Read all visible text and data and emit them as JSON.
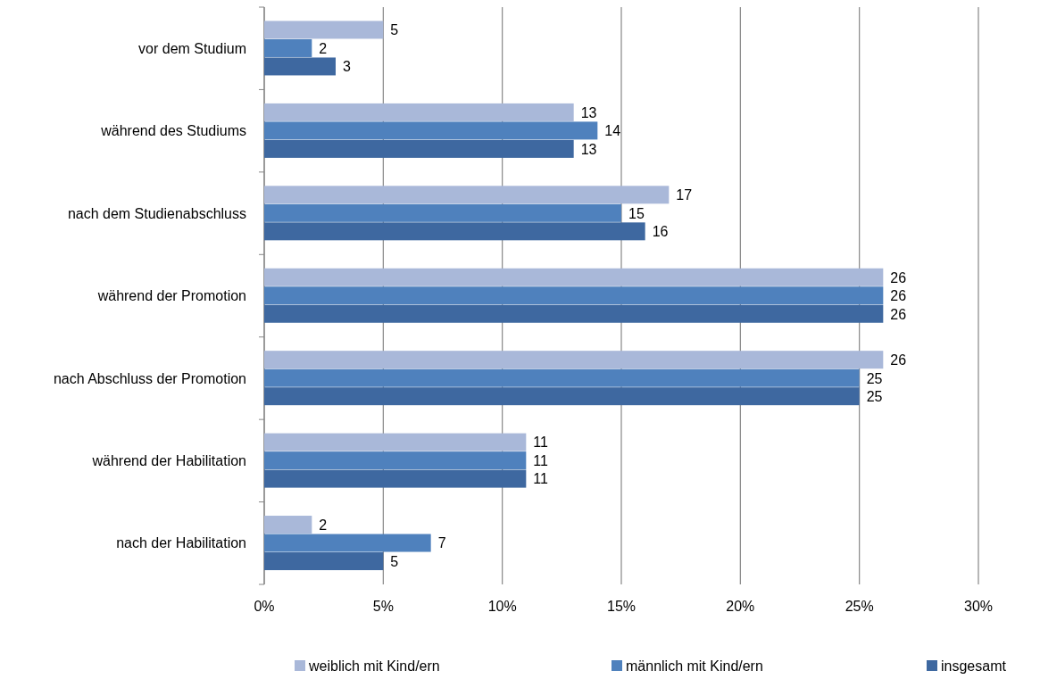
{
  "chart_data": {
    "type": "bar",
    "orientation": "horizontal",
    "categories": [
      "vor dem Studium",
      "während des Studiums",
      "nach dem Studienabschluss",
      "während der Promotion",
      "nach Abschluss der Promotion",
      "während der Habilitation",
      "nach der Habilitation"
    ],
    "series": [
      {
        "name": "weiblich mit Kind/ern",
        "color": "#a9b8d9",
        "values": [
          5,
          13,
          17,
          26,
          26,
          11,
          2
        ]
      },
      {
        "name": "männlich mit Kind/ern",
        "color": "#4f81bd",
        "values": [
          2,
          14,
          15,
          26,
          25,
          11,
          7
        ]
      },
      {
        "name": "insgesamt",
        "color": "#3e68a0",
        "values": [
          3,
          13,
          16,
          26,
          25,
          11,
          5
        ]
      }
    ],
    "xlim": [
      0,
      30
    ],
    "xticks": [
      {
        "value": 0,
        "label": "0%"
      },
      {
        "value": 5,
        "label": "5%"
      },
      {
        "value": 10,
        "label": "10%"
      },
      {
        "value": 15,
        "label": "15%"
      },
      {
        "value": 20,
        "label": "20%"
      },
      {
        "value": 25,
        "label": "25%"
      },
      {
        "value": 30,
        "label": "30%"
      }
    ],
    "grid": "x",
    "legend": "bottom",
    "data_labels": true
  }
}
